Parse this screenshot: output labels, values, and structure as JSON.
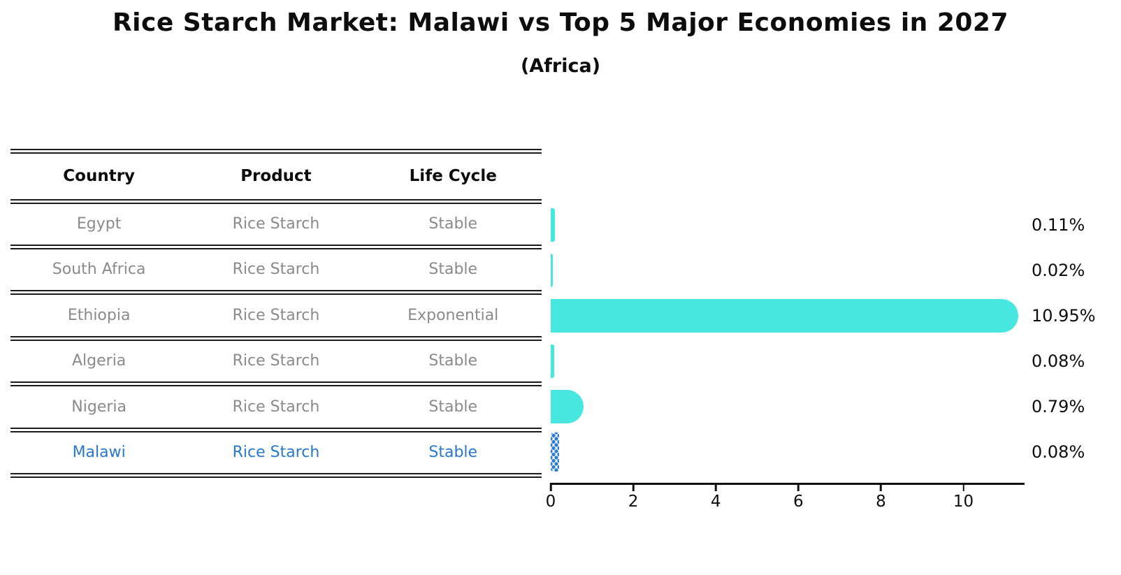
{
  "header": {
    "title": "Rice Starch Market: Malawi vs Top 5 Major Economies in 2027",
    "subtitle": "(Africa)"
  },
  "table": {
    "headers": [
      "Country",
      "Product",
      "Life Cycle"
    ],
    "rows": [
      {
        "country": "Egypt",
        "product": "Rice Starch",
        "life_cycle": "Stable",
        "highlighted": false
      },
      {
        "country": "South Africa",
        "product": "Rice Starch",
        "life_cycle": "Stable",
        "highlighted": false
      },
      {
        "country": "Ethiopia",
        "product": "Rice Starch",
        "life_cycle": "Exponential",
        "highlighted": false
      },
      {
        "country": "Algeria",
        "product": "Rice Starch",
        "life_cycle": "Stable",
        "highlighted": false
      },
      {
        "country": "Nigeria",
        "product": "Rice Starch",
        "life_cycle": "Stable",
        "highlighted": false
      },
      {
        "country": "Malawi",
        "product": "Rice Starch",
        "life_cycle": "Stable",
        "highlighted": true
      }
    ]
  },
  "chart_data": {
    "type": "bar",
    "orientation": "horizontal",
    "title": "Rice Starch Market: Malawi vs Top 5 Major Economies in 2027 (Africa)",
    "categories": [
      "Egypt",
      "South Africa",
      "Ethiopia",
      "Algeria",
      "Nigeria",
      "Malawi"
    ],
    "values": [
      0.11,
      0.02,
      10.95,
      0.08,
      0.79,
      0.08
    ],
    "value_labels": [
      "0.11%",
      "0.02%",
      "10.95%",
      "0.08%",
      "0.79%",
      "0.08%"
    ],
    "value_unit": "%",
    "x_ticks": [
      0,
      2,
      4,
      6,
      8,
      10
    ],
    "xlim": [
      0,
      11.5
    ],
    "grid": false,
    "legend": "none",
    "highlight_category": "Malawi",
    "bar_color": "#47e7df",
    "highlight_color": "#2e7cd6",
    "highlight_text_color": "#2878cd"
  }
}
